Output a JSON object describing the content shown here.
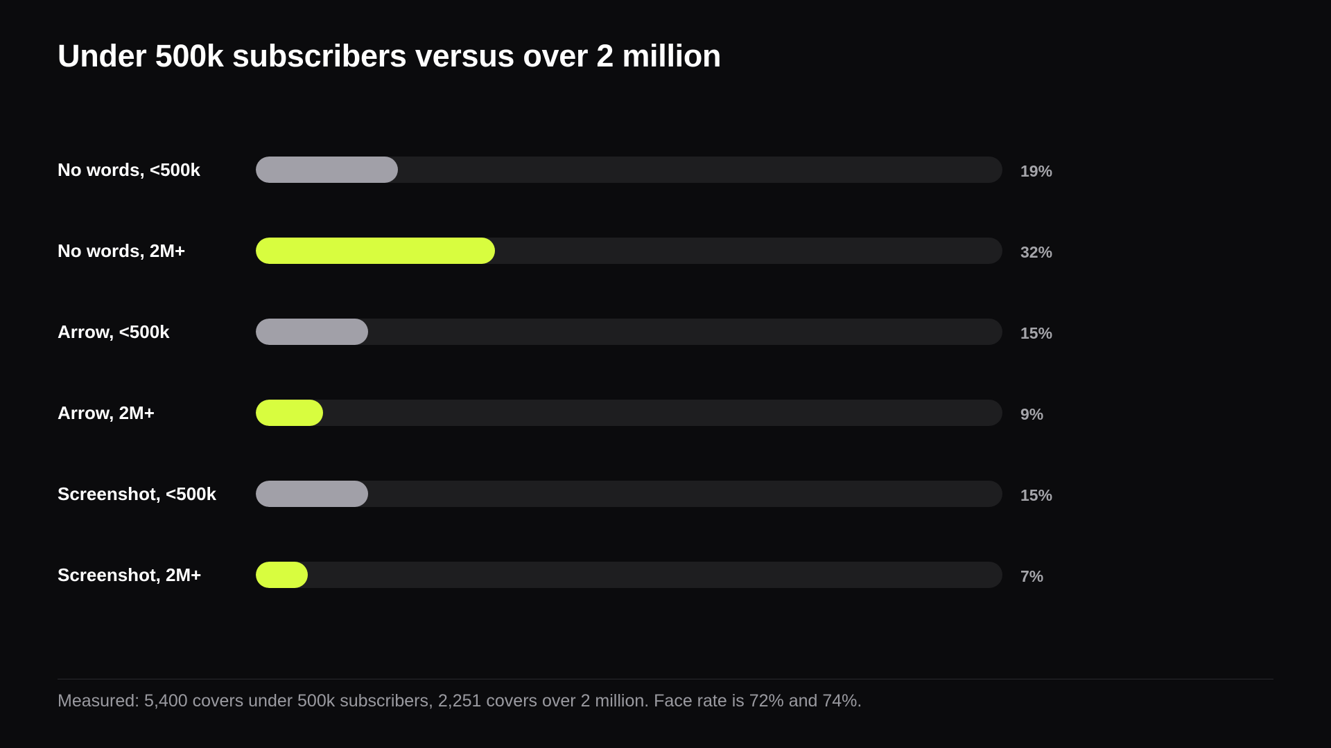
{
  "title": "Under 500k subscribers versus over 2 million",
  "chart_data": {
    "type": "bar",
    "orientation": "horizontal",
    "title": "Under 500k subscribers versus over 2 million",
    "xlabel": "",
    "ylabel": "",
    "xlim": [
      0,
      100
    ],
    "grid": false,
    "legend": "none",
    "unit": "%",
    "categories": [
      "No words, <500k",
      "No words, 2M+",
      "Arrow, <500k",
      "Arrow, 2M+",
      "Screenshot, <500k",
      "Screenshot, 2M+"
    ],
    "values": [
      19,
      32,
      15,
      9,
      15,
      7
    ],
    "value_labels": [
      "19%",
      "32%",
      "15%",
      "9%",
      "15%",
      "7%"
    ],
    "groups": [
      "<500k",
      "2M+",
      "<500k",
      "2M+",
      "<500k",
      "2M+"
    ],
    "colors": {
      "<500k": "#a1a0a8",
      "2M+": "#d8fd3f",
      "track": "#1e1e20",
      "background": "#0b0b0d"
    }
  },
  "footnote": "Measured: 5,400 covers under 500k subscribers, 2,251 covers over 2 million. Face rate is 72% and 74%."
}
